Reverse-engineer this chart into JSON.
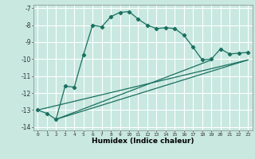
{
  "title": "",
  "xlabel": "Humidex (Indice chaleur)",
  "ylabel": "",
  "background_color": "#c8e8e0",
  "grid_color": "#ffffff",
  "line_color": "#1a7060",
  "xlim": [
    -0.5,
    23.5
  ],
  "ylim": [
    -14.2,
    -6.8
  ],
  "yticks": [
    -14,
    -13,
    -12,
    -11,
    -10,
    -9,
    -8,
    -7
  ],
  "xticks": [
    0,
    1,
    2,
    3,
    4,
    5,
    6,
    7,
    8,
    9,
    10,
    11,
    12,
    13,
    14,
    15,
    16,
    17,
    18,
    19,
    20,
    21,
    22,
    23
  ],
  "main_x": [
    0,
    1,
    2,
    3,
    4,
    5,
    6,
    7,
    8,
    9,
    10,
    11,
    12,
    13,
    14,
    15,
    16,
    17,
    18,
    19,
    20,
    21,
    22,
    23
  ],
  "main_y": [
    -13.0,
    -13.2,
    -13.55,
    -11.6,
    -11.65,
    -9.75,
    -8.0,
    -8.1,
    -7.5,
    -7.25,
    -7.2,
    -7.65,
    -8.0,
    -8.2,
    -8.15,
    -8.2,
    -8.6,
    -9.3,
    -10.05,
    -10.0,
    -9.4,
    -9.7,
    -9.65,
    -9.6
  ],
  "trend_lines": [
    {
      "x": [
        0,
        23
      ],
      "y": [
        -13.0,
        -10.05
      ]
    },
    {
      "x": [
        2,
        23
      ],
      "y": [
        -13.55,
        -10.05
      ]
    },
    {
      "x": [
        2,
        19
      ],
      "y": [
        -13.55,
        -10.05
      ]
    }
  ]
}
